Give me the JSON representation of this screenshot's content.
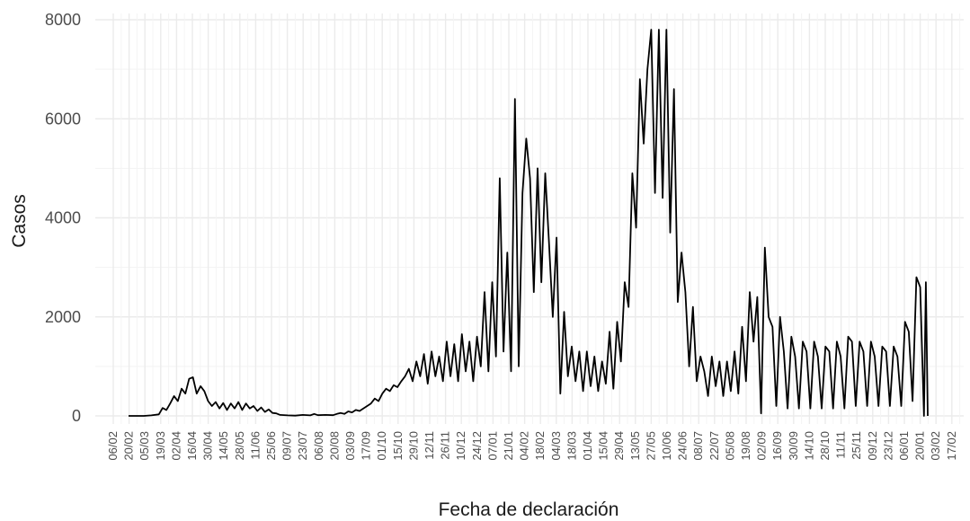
{
  "chart_data": {
    "type": "line",
    "title": "",
    "xlabel": "Fecha de declaración",
    "ylabel": "Casos",
    "ylim": [
      0,
      8000
    ],
    "yticks": [
      0,
      2000,
      4000,
      6000,
      8000
    ],
    "grid": true,
    "x_tick_labels": [
      "06/02",
      "20/02",
      "05/03",
      "19/03",
      "02/04",
      "16/04",
      "30/04",
      "14/05",
      "28/05",
      "11/06",
      "25/06",
      "09/07",
      "23/07",
      "06/08",
      "20/08",
      "03/09",
      "17/09",
      "01/10",
      "15/10",
      "29/10",
      "12/11",
      "26/11",
      "10/12",
      "24/12",
      "07/01",
      "21/01",
      "04/02",
      "18/02",
      "04/03",
      "18/03",
      "01/04",
      "15/04",
      "29/04",
      "13/05",
      "27/05",
      "10/06",
      "24/06",
      "08/07",
      "22/07",
      "05/08",
      "19/08",
      "02/09",
      "16/09",
      "30/09",
      "14/10",
      "28/10",
      "11/11",
      "25/11",
      "09/12",
      "23/12",
      "06/01",
      "20/01",
      "03/02",
      "17/02"
    ],
    "series": [
      {
        "name": "",
        "color": "#000000",
        "points": [
          [
            20,
            0
          ],
          [
            24,
            0
          ],
          [
            26,
            10
          ],
          [
            28,
            30
          ],
          [
            29,
            160
          ],
          [
            30,
            120
          ],
          [
            31,
            250
          ],
          [
            32,
            400
          ],
          [
            33,
            300
          ],
          [
            34,
            550
          ],
          [
            35,
            450
          ],
          [
            36,
            750
          ],
          [
            37,
            780
          ],
          [
            38,
            450
          ],
          [
            39,
            600
          ],
          [
            40,
            500
          ],
          [
            41,
            300
          ],
          [
            42,
            200
          ],
          [
            43,
            280
          ],
          [
            44,
            150
          ],
          [
            45,
            260
          ],
          [
            46,
            120
          ],
          [
            47,
            250
          ],
          [
            48,
            150
          ],
          [
            49,
            280
          ],
          [
            50,
            120
          ],
          [
            51,
            250
          ],
          [
            52,
            150
          ],
          [
            53,
            200
          ],
          [
            54,
            100
          ],
          [
            55,
            170
          ],
          [
            56,
            80
          ],
          [
            57,
            130
          ],
          [
            58,
            60
          ],
          [
            59,
            50
          ],
          [
            60,
            20
          ],
          [
            62,
            10
          ],
          [
            64,
            5
          ],
          [
            66,
            20
          ],
          [
            68,
            10
          ],
          [
            69,
            40
          ],
          [
            70,
            15
          ],
          [
            72,
            20
          ],
          [
            74,
            15
          ],
          [
            75,
            40
          ],
          [
            76,
            60
          ],
          [
            77,
            40
          ],
          [
            78,
            90
          ],
          [
            79,
            70
          ],
          [
            80,
            120
          ],
          [
            81,
            100
          ],
          [
            82,
            150
          ],
          [
            83,
            200
          ],
          [
            84,
            250
          ],
          [
            85,
            350
          ],
          [
            86,
            300
          ],
          [
            87,
            450
          ],
          [
            88,
            550
          ],
          [
            89,
            500
          ],
          [
            90,
            620
          ],
          [
            91,
            580
          ],
          [
            92,
            700
          ],
          [
            93,
            800
          ],
          [
            94,
            950
          ],
          [
            95,
            700
          ],
          [
            96,
            1100
          ],
          [
            97,
            800
          ],
          [
            98,
            1250
          ],
          [
            99,
            650
          ],
          [
            100,
            1300
          ],
          [
            101,
            800
          ],
          [
            102,
            1200
          ],
          [
            103,
            700
          ],
          [
            104,
            1500
          ],
          [
            105,
            800
          ],
          [
            106,
            1450
          ],
          [
            107,
            700
          ],
          [
            108,
            1650
          ],
          [
            109,
            900
          ],
          [
            110,
            1500
          ],
          [
            111,
            700
          ],
          [
            112,
            1600
          ],
          [
            113,
            1000
          ],
          [
            114,
            2500
          ],
          [
            115,
            900
          ],
          [
            116,
            2700
          ],
          [
            117,
            1200
          ],
          [
            118,
            4800
          ],
          [
            119,
            1300
          ],
          [
            120,
            3300
          ],
          [
            121,
            900
          ],
          [
            122,
            6400
          ],
          [
            123,
            1000
          ],
          [
            124,
            4500
          ],
          [
            125,
            5600
          ],
          [
            126,
            4800
          ],
          [
            127,
            2500
          ],
          [
            128,
            5000
          ],
          [
            129,
            2700
          ],
          [
            130,
            4900
          ],
          [
            131,
            3500
          ],
          [
            132,
            2000
          ],
          [
            133,
            3600
          ],
          [
            134,
            450
          ],
          [
            135,
            2100
          ],
          [
            136,
            800
          ],
          [
            137,
            1400
          ],
          [
            138,
            700
          ],
          [
            139,
            1300
          ],
          [
            140,
            500
          ],
          [
            141,
            1300
          ],
          [
            142,
            600
          ],
          [
            143,
            1200
          ],
          [
            144,
            500
          ],
          [
            145,
            1100
          ],
          [
            146,
            650
          ],
          [
            147,
            1700
          ],
          [
            148,
            550
          ],
          [
            149,
            1900
          ],
          [
            150,
            1100
          ],
          [
            151,
            2700
          ],
          [
            152,
            2200
          ],
          [
            153,
            4900
          ],
          [
            154,
            3800
          ],
          [
            155,
            6800
          ],
          [
            156,
            5500
          ],
          [
            157,
            7000
          ],
          [
            158,
            7800
          ],
          [
            159,
            4500
          ],
          [
            160,
            7800
          ],
          [
            161,
            4400
          ],
          [
            162,
            7800
          ],
          [
            163,
            3700
          ],
          [
            164,
            6600
          ],
          [
            165,
            2300
          ],
          [
            166,
            3300
          ],
          [
            167,
            2500
          ],
          [
            168,
            1000
          ],
          [
            169,
            2200
          ],
          [
            170,
            700
          ],
          [
            171,
            1200
          ],
          [
            172,
            900
          ],
          [
            173,
            400
          ],
          [
            174,
            1200
          ],
          [
            175,
            600
          ],
          [
            176,
            1100
          ],
          [
            177,
            400
          ],
          [
            178,
            1100
          ],
          [
            179,
            500
          ],
          [
            180,
            1300
          ],
          [
            181,
            450
          ],
          [
            182,
            1800
          ],
          [
            183,
            700
          ],
          [
            184,
            2500
          ],
          [
            185,
            1500
          ],
          [
            186,
            2400
          ],
          [
            187,
            50
          ],
          [
            188,
            3400
          ],
          [
            189,
            2000
          ],
          [
            190,
            1800
          ],
          [
            191,
            200
          ],
          [
            192,
            2000
          ],
          [
            193,
            1300
          ],
          [
            194,
            150
          ],
          [
            195,
            1600
          ],
          [
            196,
            1200
          ],
          [
            197,
            150
          ],
          [
            198,
            1500
          ],
          [
            199,
            1300
          ],
          [
            200,
            150
          ],
          [
            201,
            1500
          ],
          [
            202,
            1200
          ],
          [
            203,
            150
          ],
          [
            204,
            1400
          ],
          [
            205,
            1300
          ],
          [
            206,
            150
          ],
          [
            207,
            1500
          ],
          [
            208,
            1200
          ],
          [
            209,
            150
          ],
          [
            210,
            1600
          ],
          [
            211,
            1500
          ],
          [
            212,
            200
          ],
          [
            213,
            1500
          ],
          [
            214,
            1300
          ],
          [
            215,
            200
          ],
          [
            216,
            1500
          ],
          [
            217,
            1200
          ],
          [
            218,
            200
          ],
          [
            219,
            1400
          ],
          [
            220,
            1300
          ],
          [
            221,
            200
          ],
          [
            222,
            1400
          ],
          [
            223,
            1200
          ],
          [
            224,
            200
          ],
          [
            225,
            1900
          ],
          [
            226,
            1700
          ],
          [
            227,
            300
          ],
          [
            228,
            2800
          ],
          [
            229,
            2600
          ],
          [
            230,
            0
          ],
          [
            230.5,
            2700
          ],
          [
            231,
            0
          ]
        ]
      }
    ]
  }
}
